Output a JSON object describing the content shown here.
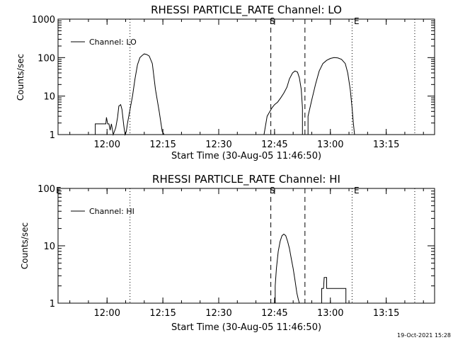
{
  "chart_data": [
    {
      "type": "line",
      "title": "RHESSI PARTICLE_RATE Channel: LO",
      "xlabel": "Start Time (30-Aug-05 11:46:50)",
      "ylabel": "Counts/sec",
      "yscale": "log",
      "xlim": [
        "11:46:50",
        "13:28:00"
      ],
      "ylim": [
        1,
        1000
      ],
      "xticks": [
        "12:00",
        "12:15",
        "12:30",
        "12:45",
        "13:00",
        "13:15"
      ],
      "yticks": [
        "1",
        "10",
        "100",
        "1000"
      ],
      "legend_position": "top-left",
      "grid": false,
      "series": [
        {
          "name": "Channel: LO",
          "x": [
            "11:56:50",
            "11:56:50",
            "11:59:40",
            "11:59:50",
            "12:00:10",
            "12:00:30",
            "12:00:50",
            "12:01:10",
            "12:01:40",
            "12:02:20",
            "12:02:50",
            "12:03:10",
            "12:03:40",
            "12:04:00",
            "12:04:30",
            "12:04:50",
            "12:05:10",
            "12:05:30",
            "12:06:10",
            "12:06:50",
            "12:07:30",
            "12:08:10",
            "12:08:50",
            "12:09:30",
            "12:10:00",
            "12:10:40",
            "12:11:20",
            "12:12:10",
            "12:13:00",
            "12:14:00",
            "12:14:50",
            "12:15:20",
            "12:15:50",
            "12:16:10",
            "12:16:30",
            "12:16:30",
            "12:42:10",
            "12:42:10",
            "12:43:00",
            "12:44:20",
            "12:45:00",
            "12:45:50",
            "12:46:40",
            "12:47:30",
            "12:48:20",
            "12:49:00",
            "12:49:50",
            "12:50:30",
            "12:51:10",
            "12:51:40",
            "12:52:10",
            "12:52:30",
            "12:52:30"
          ],
          "values": [
            1,
            1.9,
            1.9,
            2.8,
            1.9,
            1.9,
            1.3,
            1.9,
            1.0,
            1.5,
            2.8,
            5.5,
            6.0,
            4.5,
            1.7,
            1.0,
            1.2,
            2.0,
            4.5,
            10,
            28,
            65,
            100,
            115,
            125,
            120,
            110,
            70,
            15,
            4,
            1.2,
            1,
            1,
            1,
            1,
            1,
            1,
            1,
            3,
            5,
            6,
            7,
            9,
            12,
            17,
            28,
            40,
            45,
            42,
            30,
            15,
            5,
            1
          ],
          "x2": [
            "12:54:00",
            "12:54:00",
            "12:55:00",
            "12:56:00",
            "12:57:00",
            "12:58:00",
            "12:59:00",
            "13:00:00",
            "13:01:00",
            "13:02:00",
            "13:03:00",
            "13:04:00",
            "13:04:40",
            "13:05:20",
            "13:05:50",
            "13:06:10",
            "13:06:30"
          ],
          "values2": [
            1,
            3,
            8,
            20,
            45,
            70,
            85,
            95,
            100,
            98,
            90,
            70,
            40,
            15,
            5,
            2,
            1
          ]
        }
      ],
      "annotations": {
        "start_marker": "S",
        "end_marker": "E"
      }
    },
    {
      "type": "line",
      "title": "RHESSI PARTICLE_RATE Channel: HI",
      "xlabel": "Start Time (30-Aug-05 11:46:50)",
      "ylabel": "Counts/sec",
      "yscale": "log",
      "xlim": [
        "11:46:50",
        "13:28:00"
      ],
      "ylim": [
        1,
        100
      ],
      "xticks": [
        "12:00",
        "12:15",
        "12:30",
        "12:45",
        "13:00",
        "13:15"
      ],
      "yticks": [
        "1",
        "10",
        "100"
      ],
      "legend_position": "top-left",
      "grid": false,
      "series": [
        {
          "name": "Channel: HI",
          "x": [
            "12:45:10",
            "12:45:10",
            "12:45:30",
            "12:46:00",
            "12:46:30",
            "12:47:00",
            "12:47:30",
            "12:48:00",
            "12:48:30",
            "12:49:00",
            "12:49:30",
            "12:50:00",
            "12:50:30",
            "12:51:00",
            "12:51:20",
            "12:51:40",
            "12:51:40"
          ],
          "values": [
            1,
            2,
            4,
            8,
            12,
            15,
            16,
            15,
            12,
            9,
            6,
            4,
            2.5,
            1.5,
            1.2,
            1,
            1
          ],
          "x2": [
            "12:57:40",
            "12:57:40",
            "12:58:10",
            "12:58:20",
            "12:59:00",
            "12:59:00",
            "13:00:20",
            "13:00:20",
            "13:01:50",
            "13:01:50",
            "13:03:00",
            "13:03:00",
            "13:04:10",
            "13:04:10"
          ],
          "values2": [
            1,
            1.8,
            1.8,
            2.8,
            2.8,
            1.8,
            1.8,
            1.8,
            1.8,
            1.8,
            1.8,
            1.8,
            1.8,
            1
          ]
        }
      ],
      "annotations": {
        "start_marker": "S",
        "end_marker": "E",
        "left_marker": "E"
      }
    }
  ],
  "shared_markers": {
    "dotted_lines": [
      "12:06:10",
      "13:05:50",
      "13:22:40"
    ],
    "dashed_lines": [
      "12:44:00",
      "12:53:10"
    ],
    "left_dotted": "11:48:10"
  },
  "footer": {
    "timestamp": "19-Oct-2021 15:28"
  }
}
